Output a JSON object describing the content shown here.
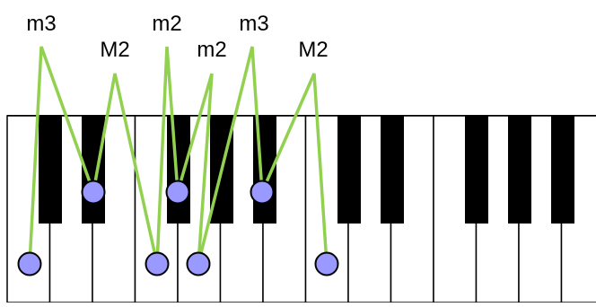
{
  "colors": {
    "white_key": "#ffffff",
    "black_key": "#000000",
    "key_border": "#000000",
    "connector_line": "#92d050",
    "note_marker_fill": "#9999ff",
    "note_marker_stroke": "#000000",
    "label_text": "#000000"
  },
  "keyboard": {
    "white_key_count": 14,
    "black_key_pattern": [
      "C#",
      "D#",
      "F#",
      "G#",
      "A#",
      "C#",
      "D#",
      "F#",
      "G#",
      "A#"
    ]
  },
  "interval_labels": [
    {
      "id": "interval-1",
      "text": "m3"
    },
    {
      "id": "interval-2",
      "text": "M2"
    },
    {
      "id": "interval-3",
      "text": "m2"
    },
    {
      "id": "interval-4",
      "text": "m2"
    },
    {
      "id": "interval-5",
      "text": "m3"
    },
    {
      "id": "interval-6",
      "text": "M2"
    }
  ],
  "notes": [
    {
      "id": "note-1",
      "key_type": "white"
    },
    {
      "id": "note-2",
      "key_type": "black"
    },
    {
      "id": "note-3",
      "key_type": "white"
    },
    {
      "id": "note-4",
      "key_type": "black"
    },
    {
      "id": "note-5",
      "key_type": "white"
    },
    {
      "id": "note-6",
      "key_type": "black"
    },
    {
      "id": "note-7",
      "key_type": "white"
    }
  ]
}
